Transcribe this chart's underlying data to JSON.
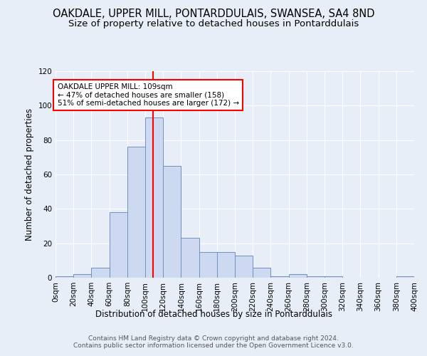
{
  "title1": "OAKDALE, UPPER MILL, PONTARDDULAIS, SWANSEA, SA4 8ND",
  "title2": "Size of property relative to detached houses in Pontarddulais",
  "xlabel": "Distribution of detached houses by size in Pontarddulais",
  "ylabel": "Number of detached properties",
  "bin_edges": [
    0,
    20,
    40,
    60,
    80,
    100,
    120,
    140,
    160,
    180,
    200,
    220,
    240,
    260,
    280,
    300,
    320,
    340,
    360,
    380,
    400
  ],
  "bar_heights": [
    1,
    2,
    6,
    38,
    76,
    93,
    65,
    23,
    15,
    15,
    13,
    6,
    1,
    2,
    1,
    1,
    0,
    0,
    0,
    1
  ],
  "bar_color": "#ccd9f0",
  "bar_edge_color": "#7090c0",
  "vline_x": 109,
  "vline_color": "red",
  "ylim": [
    0,
    120
  ],
  "yticks": [
    0,
    20,
    40,
    60,
    80,
    100,
    120
  ],
  "background_color": "#e8eef8",
  "annotation_text": "OAKDALE UPPER MILL: 109sqm\n← 47% of detached houses are smaller (158)\n51% of semi-detached houses are larger (172) →",
  "annotation_box_color": "white",
  "annotation_box_edge": "red",
  "footer_text": "Contains HM Land Registry data © Crown copyright and database right 2024.\nContains public sector information licensed under the Open Government Licence v3.0.",
  "title1_fontsize": 10.5,
  "title2_fontsize": 9.5,
  "xlabel_fontsize": 8.5,
  "ylabel_fontsize": 8.5,
  "tick_fontsize": 7.5,
  "annotation_fontsize": 7.5,
  "footer_fontsize": 6.5
}
